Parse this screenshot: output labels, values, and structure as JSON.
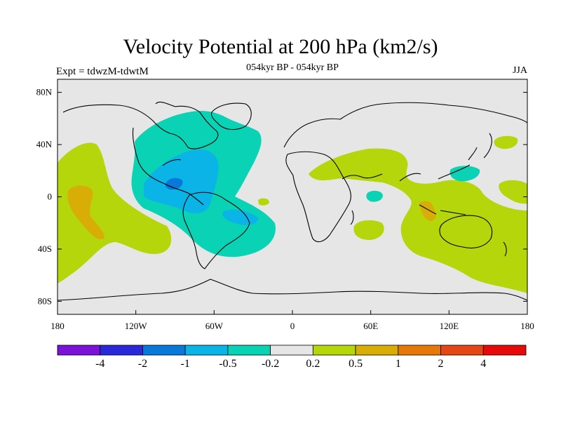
{
  "header": {
    "title": "Velocity Potential at 200 hPa (km2/s)",
    "subtitle": "054kyr BP - 054kyr BP",
    "experiment": "Expt = tdwzM-tdwtM",
    "season": "JJA"
  },
  "colors": {
    "land": "#000000",
    "background": "#e6e6e6",
    "frame": "#000000"
  },
  "map_axes": {
    "lon_range": [
      -180,
      180
    ],
    "lat_range": [
      -90,
      90
    ],
    "y_ticks": [
      {
        "lat": 80,
        "label": "80N"
      },
      {
        "lat": 40,
        "label": "40N"
      },
      {
        "lat": 0,
        "label": "0"
      },
      {
        "lat": -40,
        "label": "40S"
      },
      {
        "lat": -80,
        "label": "80S"
      }
    ],
    "x_ticks": [
      {
        "lon": -180,
        "label": "180"
      },
      {
        "lon": -120,
        "label": "120W"
      },
      {
        "lon": -60,
        "label": "60W"
      },
      {
        "lon": 0,
        "label": "0"
      },
      {
        "lon": 60,
        "label": "60E"
      },
      {
        "lon": 120,
        "label": "120E"
      },
      {
        "lon": 180,
        "label": "180"
      }
    ]
  },
  "colorbar": {
    "colors": [
      "#7a12d8",
      "#2a28d8",
      "#0a78d8",
      "#0ab4e6",
      "#0ad2b4",
      "#e6e6e6",
      "#b4d60a",
      "#d8ae06",
      "#e6780a",
      "#e44614",
      "#e60a0a"
    ],
    "labels": [
      "-4",
      "-2",
      "-1",
      "-0.5",
      "-0.2",
      "0.2",
      "0.5",
      "1",
      "2",
      "4"
    ]
  }
}
